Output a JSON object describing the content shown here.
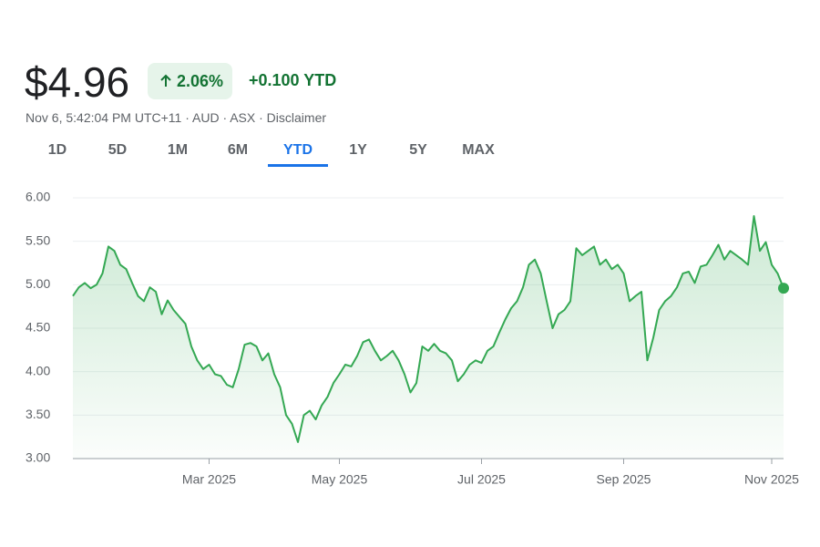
{
  "header": {
    "price": "$4.96",
    "change_pct": "2.06%",
    "change_abs": "+0.100 YTD",
    "meta": "Nov 6, 5:42:04 PM UTC+11 · AUD · ASX · Disclaimer"
  },
  "tabs": {
    "items": [
      "1D",
      "5D",
      "1M",
      "6M",
      "YTD",
      "1Y",
      "5Y",
      "MAX"
    ],
    "selected": 4
  },
  "chart_data": {
    "type": "line",
    "color": "#34a853",
    "grid": true,
    "ylim": [
      3,
      6
    ],
    "yticks": [
      {
        "value": 3,
        "label": "3.00"
      },
      {
        "value": 3.5,
        "label": "3.50"
      },
      {
        "value": 4,
        "label": "4.00"
      },
      {
        "value": 4.5,
        "label": "4.50"
      },
      {
        "value": 5,
        "label": "5.00"
      },
      {
        "value": 5.5,
        "label": "5.50"
      },
      {
        "value": 6,
        "label": "6.00"
      }
    ],
    "categories": [
      null,
      null,
      null,
      null,
      null,
      null,
      null,
      null,
      null,
      null,
      null,
      null,
      null,
      null,
      null,
      null,
      null,
      null,
      null,
      null,
      null,
      null,
      null,
      "Mar 2025",
      null,
      null,
      null,
      null,
      null,
      null,
      null,
      null,
      null,
      null,
      null,
      null,
      null,
      null,
      null,
      null,
      null,
      null,
      null,
      null,
      null,
      "May 2025",
      null,
      null,
      null,
      null,
      null,
      null,
      null,
      null,
      null,
      null,
      null,
      null,
      null,
      null,
      null,
      null,
      null,
      null,
      null,
      null,
      null,
      null,
      null,
      "Jul 2025",
      null,
      null,
      null,
      null,
      null,
      null,
      null,
      null,
      null,
      null,
      null,
      null,
      null,
      null,
      null,
      null,
      null,
      null,
      null,
      null,
      null,
      null,
      null,
      "Sep 2025",
      null,
      null,
      null,
      null,
      null,
      null,
      null,
      null,
      null,
      null,
      null,
      null,
      null,
      null,
      null,
      null,
      null,
      null,
      null,
      null,
      null,
      null,
      null,
      null,
      "Nov 2025",
      null,
      null
    ],
    "values": [
      4.87,
      4.97,
      5.02,
      4.96,
      5.0,
      5.13,
      5.44,
      5.39,
      5.23,
      5.18,
      5.02,
      4.87,
      4.81,
      4.97,
      4.92,
      4.66,
      4.82,
      4.71,
      4.63,
      4.55,
      4.29,
      4.13,
      4.03,
      4.08,
      3.97,
      3.95,
      3.85,
      3.82,
      4.03,
      4.31,
      4.33,
      4.29,
      4.13,
      4.21,
      3.97,
      3.82,
      3.5,
      3.4,
      3.19,
      3.5,
      3.55,
      3.45,
      3.61,
      3.71,
      3.87,
      3.97,
      4.08,
      4.06,
      4.18,
      4.34,
      4.37,
      4.24,
      4.13,
      4.18,
      4.24,
      4.13,
      3.97,
      3.76,
      3.87,
      4.29,
      4.24,
      4.32,
      4.24,
      4.21,
      4.13,
      3.89,
      3.97,
      4.08,
      4.13,
      4.1,
      4.24,
      4.29,
      4.45,
      4.6,
      4.73,
      4.81,
      4.97,
      5.23,
      5.29,
      5.13,
      4.81,
      4.5,
      4.66,
      4.71,
      4.81,
      5.42,
      5.34,
      5.39,
      5.44,
      5.23,
      5.29,
      5.18,
      5.23,
      5.13,
      4.81,
      4.87,
      4.92,
      4.13,
      4.39,
      4.71,
      4.81,
      4.87,
      4.97,
      5.13,
      5.15,
      5.02,
      5.21,
      5.23,
      5.34,
      5.46,
      5.29,
      5.39,
      5.34,
      5.29,
      5.23,
      5.79,
      5.39,
      5.49,
      5.23,
      5.13,
      4.96
    ]
  }
}
